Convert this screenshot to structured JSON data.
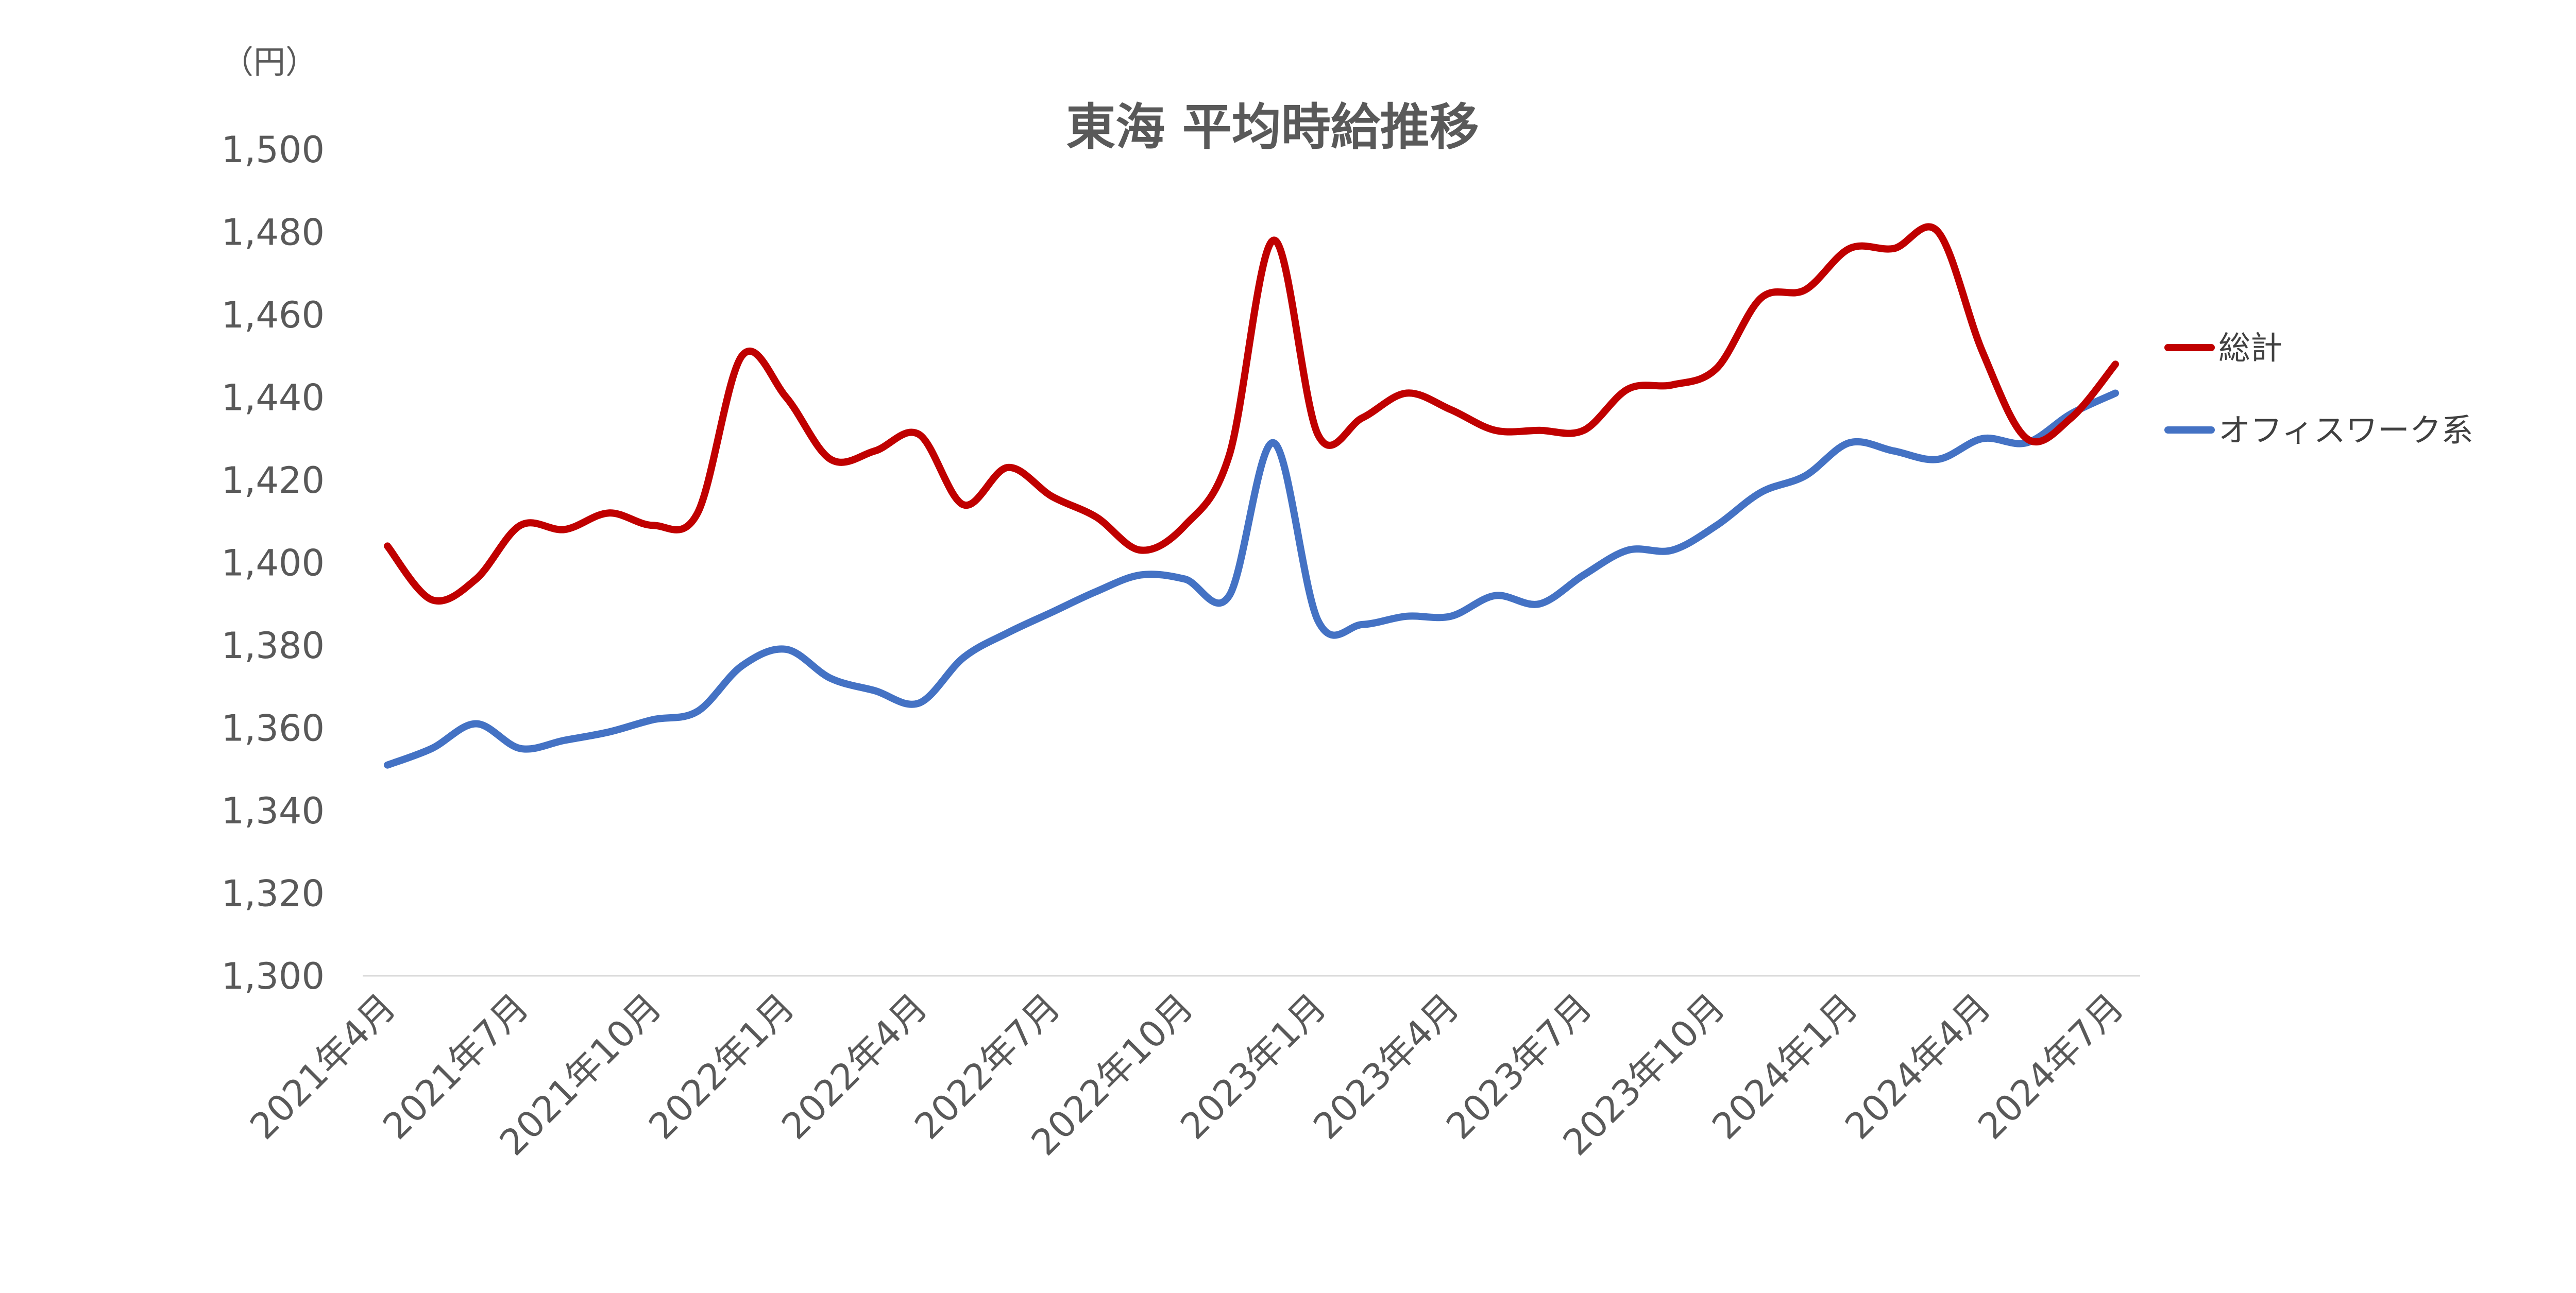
{
  "chart_data": {
    "type": "line",
    "title": "東海 平均時給推移",
    "unit_label": "（円）",
    "ylim": [
      1300,
      1500
    ],
    "y_ticks": [
      "1,300",
      "1,320",
      "1,340",
      "1,360",
      "1,380",
      "1,400",
      "1,420",
      "1,440",
      "1,460",
      "1,480",
      "1,500"
    ],
    "y_tick_values": [
      1300,
      1320,
      1340,
      1360,
      1380,
      1400,
      1420,
      1440,
      1460,
      1480,
      1500
    ],
    "grid": false,
    "legend_position": "right",
    "x": [
      "2021年4月",
      "2021年5月",
      "2021年6月",
      "2021年7月",
      "2021年8月",
      "2021年9月",
      "2021年10月",
      "2021年11月",
      "2021年12月",
      "2022年1月",
      "2022年2月",
      "2022年3月",
      "2022年4月",
      "2022年5月",
      "2022年6月",
      "2022年7月",
      "2022年8月",
      "2022年9月",
      "2022年10月",
      "2022年11月",
      "2022年12月",
      "2023年1月",
      "2023年2月",
      "2023年3月",
      "2023年4月",
      "2023年5月",
      "2023年6月",
      "2023年7月",
      "2023年8月",
      "2023年9月",
      "2023年10月",
      "2023年11月",
      "2023年12月",
      "2024年1月",
      "2024年2月",
      "2024年3月",
      "2024年4月",
      "2024年5月",
      "2024年6月",
      "2024年7月"
    ],
    "x_tick_labels": [
      "2021年4月",
      "2021年7月",
      "2021年10月",
      "2022年1月",
      "2022年4月",
      "2022年7月",
      "2022年10月",
      "2023年1月",
      "2023年4月",
      "2023年7月",
      "2023年10月",
      "2024年1月",
      "2024年4月",
      "2024年7月"
    ],
    "x_tick_indices": [
      0,
      3,
      6,
      9,
      12,
      15,
      18,
      21,
      24,
      27,
      30,
      33,
      36,
      39
    ],
    "series": [
      {
        "name": "総計",
        "color": "#C00000",
        "values": [
          1404,
          1391,
          1396,
          1409,
          1408,
          1412,
          1409,
          1412,
          1450,
          1440,
          1425,
          1427,
          1431,
          1414,
          1423,
          1416,
          1411,
          1403,
          1409,
          1426,
          1478,
          1431,
          1435,
          1441,
          1437,
          1432,
          1432,
          1432,
          1442,
          1443,
          1447,
          1464,
          1466,
          1476,
          1476,
          1480,
          1451,
          1430,
          1435,
          1448
        ]
      },
      {
        "name": "オフィスワーク系",
        "color": "#4472C4",
        "values": [
          1351,
          1355,
          1361,
          1355,
          1357,
          1359,
          1362,
          1364,
          1375,
          1379,
          1372,
          1369,
          1366,
          1377,
          1383,
          1388,
          1393,
          1397,
          1396,
          1392,
          1429,
          1386,
          1385,
          1387,
          1387,
          1392,
          1390,
          1397,
          1403,
          1403,
          1409,
          1417,
          1421,
          1429,
          1427,
          1425,
          1430,
          1429,
          1436,
          1441
        ]
      }
    ]
  }
}
